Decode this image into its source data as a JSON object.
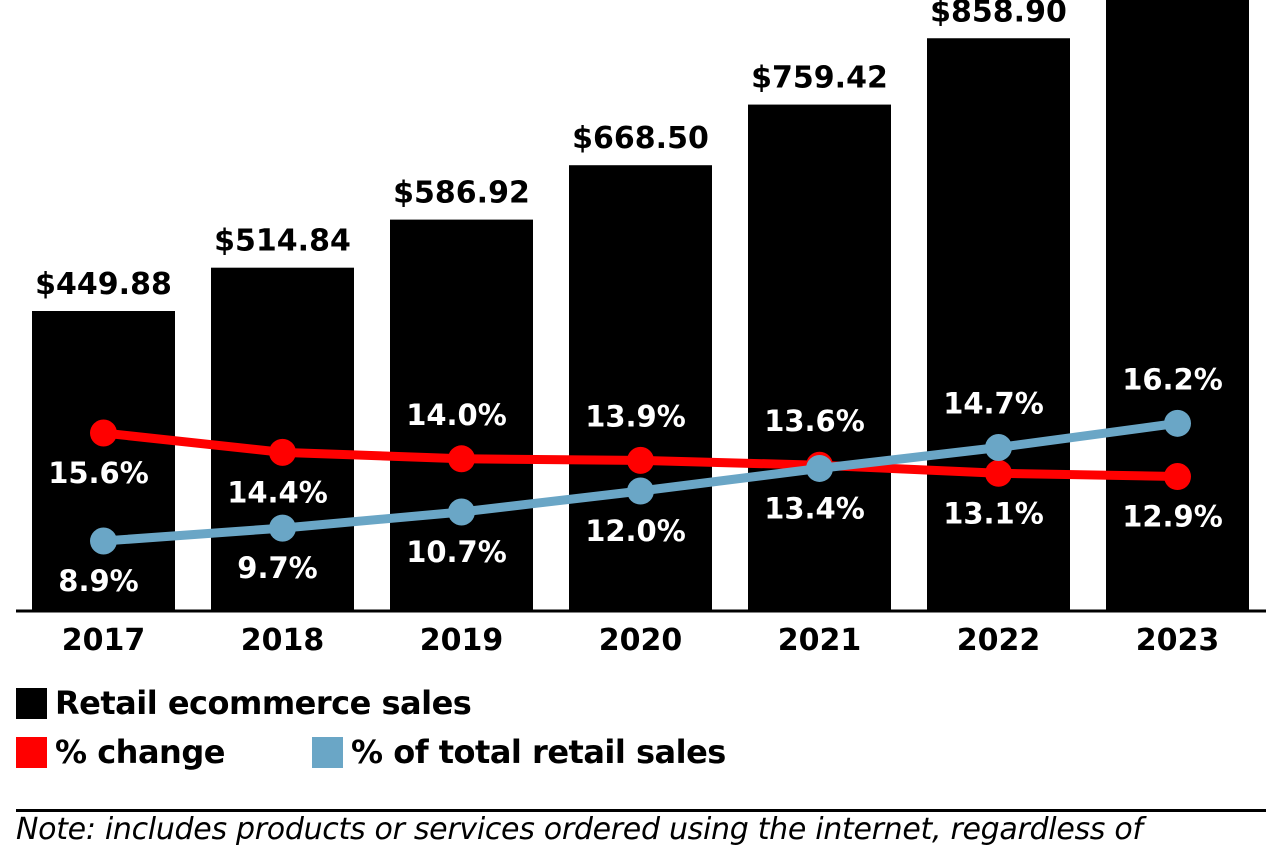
{
  "chart_data": {
    "type": "bar",
    "title": "",
    "xlabel": "",
    "ylabel": "",
    "categories": [
      "2017",
      "2018",
      "2019",
      "2020",
      "2021",
      "2022",
      "2023"
    ],
    "series": [
      {
        "name": "Retail ecommerce sales",
        "type": "bar",
        "color": "#000000",
        "values": [
          449.88,
          514.84,
          586.92,
          668.5,
          759.42,
          858.9,
          null
        ],
        "labels": [
          "$449.88",
          "$514.84",
          "$586.92",
          "$668.50",
          "$759.42",
          "$858.90",
          ""
        ]
      },
      {
        "name": "% change",
        "type": "line",
        "color": "#ff0000",
        "values": [
          15.6,
          14.4,
          14.0,
          13.9,
          13.6,
          13.1,
          12.9
        ],
        "labels": [
          "15.6%",
          "14.4%",
          "14.0%",
          "13.9%",
          "13.6%",
          "13.1%",
          "12.9%"
        ]
      },
      {
        "name": "% of total retail sales",
        "type": "line",
        "color": "#6aa6c6",
        "values": [
          8.9,
          9.7,
          10.7,
          12.0,
          13.4,
          14.7,
          16.2
        ],
        "labels": [
          "8.9%",
          "9.7%",
          "10.7%",
          "12.0%",
          "13.4%",
          "14.7%",
          "16.2%"
        ]
      }
    ],
    "bar_ylim": [
      0,
      900
    ],
    "line_ylim": [
      0,
      40
    ],
    "grid": false,
    "legend_position": "bottom-left"
  },
  "legend": {
    "items": [
      {
        "label": "Retail ecommerce sales",
        "color": "#000000"
      },
      {
        "label": "% change",
        "color": "#ff0000"
      },
      {
        "label": "% of total retail sales",
        "color": "#6aa6c6"
      }
    ]
  },
  "note": "Note: includes products or services ordered using the internet, regardless of"
}
